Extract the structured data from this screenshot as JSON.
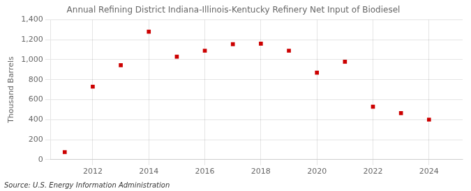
{
  "chart_data": {
    "type": "scatter",
    "title": "Annual Refining District Indiana-Illinois-Kentucky Refinery Net Input of Biodiesel",
    "ylabel": "Thousand Barrels",
    "annotation": "Source: U.S. Energy Information Administration",
    "x": [
      2011,
      2012,
      2013,
      2014,
      2015,
      2016,
      2017,
      2018,
      2019,
      2020,
      2021,
      2022,
      2023,
      2024
    ],
    "values": [
      75,
      730,
      945,
      1280,
      1030,
      1090,
      1155,
      1160,
      1090,
      870,
      980,
      530,
      465,
      400
    ],
    "color": "#cc0000",
    "marker": "square",
    "xlim": [
      2010.5,
      2025.2
    ],
    "xticks": [
      2012,
      2014,
      2016,
      2018,
      2020,
      2022,
      2024
    ],
    "ylim": [
      0,
      1400
    ],
    "yticks": [
      0,
      200,
      400,
      600,
      800,
      {
        "value": 1000,
        "label": "1,000"
      },
      {
        "value": 1200,
        "label": "1,200"
      },
      {
        "value": 1400,
        "label": "1,400"
      }
    ],
    "grid": true
  }
}
